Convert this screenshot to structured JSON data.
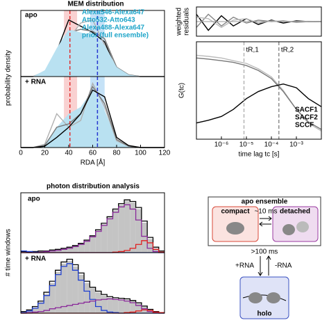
{
  "chart_data": [
    {
      "type": "line",
      "title": "MEM distribution",
      "annotation": "apo",
      "ylabel": "probability density",
      "legend": true,
      "legend_color": "#1ea5c9",
      "x": [
        0,
        10,
        20,
        30,
        40,
        50,
        60,
        70,
        80,
        90,
        100,
        110,
        120
      ],
      "xlim": [
        0,
        120
      ],
      "ylim": [
        0,
        1.05
      ],
      "markers": [
        {
          "x": 41,
          "band": [
            36,
            47
          ],
          "color": "#e03030",
          "band_color": "#f7c6c6"
        },
        {
          "x": 64,
          "band": [
            58,
            70
          ],
          "color": "#2535d0",
          "band_color": "#b7dbf5"
        }
      ],
      "series": [
        {
          "name": "Alexa546-Alexa647",
          "color": "#000000",
          "values": [
            0,
            0,
            0.05,
            0.4,
            0.9,
            0.8,
            0.7,
            0.55,
            0.1,
            0.02,
            0,
            0,
            0
          ]
        },
        {
          "name": "Atto532-Atto643",
          "color": "#777777",
          "values": [
            0,
            0,
            0.05,
            0.3,
            0.7,
            0.75,
            0.72,
            0.6,
            0.15,
            0.03,
            0,
            0,
            0
          ]
        },
        {
          "name": "Alexa488-Alexa647",
          "color": "#b0b0b0",
          "values": [
            0,
            0,
            0.08,
            0.35,
            0.6,
            0.85,
            0.9,
            0.5,
            0.12,
            0.02,
            0,
            0,
            0
          ]
        },
        {
          "name": "prior (full ensemble)",
          "color": "#b9e1f1",
          "fill": true,
          "values": [
            0,
            0,
            0.1,
            0.45,
            0.75,
            0.7,
            0.65,
            0.5,
            0.15,
            0.03,
            0,
            0,
            0
          ]
        }
      ]
    },
    {
      "type": "line",
      "annotation": "+ RNA",
      "xlabel": "RDA [Å]",
      "x": [
        0,
        10,
        20,
        30,
        40,
        50,
        60,
        70,
        80,
        90,
        100,
        110,
        120
      ],
      "xlim": [
        0,
        120
      ],
      "ylim": [
        0,
        1.05
      ],
      "xticks": [
        0,
        20,
        40,
        60,
        80,
        100,
        120
      ],
      "markers": [
        {
          "x": 41,
          "band": [
            36,
            47
          ],
          "color": "#e03030",
          "band_color": "#f7c6c6"
        },
        {
          "x": 64,
          "band": [
            58,
            70
          ],
          "color": "#2535d0",
          "band_color": "#b7dbf5"
        }
      ],
      "series": [
        {
          "color": "#b9e1f1",
          "fill": true,
          "values": [
            0,
            0,
            0.05,
            0.3,
            0.5,
            0.6,
            0.85,
            0.55,
            0.12,
            0.02,
            0,
            0,
            0
          ]
        },
        {
          "color": "#b0b0b0",
          "values": [
            0,
            0,
            0.05,
            0.5,
            0.3,
            0.4,
            0.95,
            0.6,
            0.1,
            0.02,
            0,
            0,
            0
          ]
        },
        {
          "color": "#777777",
          "values": [
            0,
            0,
            0.03,
            0.3,
            0.35,
            0.5,
            0.9,
            0.65,
            0.12,
            0.02,
            0,
            0,
            0
          ]
        },
        {
          "color": "#000000",
          "values": [
            0,
            0,
            0.02,
            0.15,
            0.3,
            0.5,
            0.85,
            0.75,
            0.15,
            0.03,
            0,
            0,
            0
          ]
        }
      ]
    },
    {
      "type": "line",
      "ylabel": [
        "weighted",
        "residuals"
      ],
      "log_x": true,
      "x": [
        1e-07,
        3e-07,
        1e-06,
        3e-06,
        1e-05,
        3e-05,
        0.0001,
        0.0003,
        0.001,
        0.003,
        0.01
      ],
      "xlim": [
        1e-07,
        0.01
      ],
      "ylim": [
        -1,
        1
      ],
      "series": [
        {
          "color": "#000000",
          "values": [
            0.5,
            -0.6,
            0.4,
            -0.3,
            0.2,
            -0.2,
            0.1,
            -0.1,
            0.05,
            0,
            0
          ]
        },
        {
          "color": "#888888",
          "values": [
            -0.4,
            0.5,
            -0.3,
            0.3,
            -0.1,
            0.1,
            0,
            0.05,
            -0.05,
            0,
            0
          ]
        },
        {
          "color": "#bbbbbb",
          "values": [
            0.3,
            0.2,
            -0.4,
            0.1,
            0.2,
            -0.1,
            0.05,
            0,
            0,
            0.02,
            0
          ]
        }
      ]
    },
    {
      "type": "line",
      "ylabel": "G(tc)",
      "xlabel": "time lag tc [s]",
      "log_x": true,
      "legend": true,
      "legend_color": "#000000",
      "x": [
        1e-07,
        3e-07,
        1e-06,
        3e-06,
        1e-05,
        3e-05,
        0.0001,
        0.0003,
        0.001,
        0.003,
        0.01
      ],
      "xlim": [
        1e-07,
        0.01
      ],
      "ylim": [
        0,
        1.8
      ],
      "xticks": [
        {
          "value": 1e-06,
          "label": "10⁻⁶"
        },
        {
          "value": 1e-05,
          "label": "10⁻⁵"
        },
        {
          "value": 0.0001,
          "label": "10⁻⁴"
        },
        {
          "value": 0.001,
          "label": "10⁻³"
        }
      ],
      "markers": [
        {
          "x": 8e-06,
          "label": "tR,1",
          "color": "#999999"
        },
        {
          "x": 0.0002,
          "label": "tR,2",
          "color": "#555555"
        }
      ],
      "series": [
        {
          "name": "SACF1",
          "color": "#bbbbbb",
          "values": [
            1.55,
            1.53,
            1.5,
            1.45,
            1.4,
            1.3,
            1.15,
            0.9,
            0.55,
            0.3,
            0.15
          ]
        },
        {
          "name": "SACF2",
          "color": "#777777",
          "values": [
            1.5,
            1.48,
            1.45,
            1.42,
            1.36,
            1.27,
            1.12,
            0.88,
            0.55,
            0.32,
            0.18
          ]
        },
        {
          "name": "SCCF",
          "color": "#000000",
          "values": [
            0.3,
            0.35,
            0.42,
            0.55,
            0.75,
            0.88,
            0.97,
            1.02,
            0.95,
            0.75,
            0.6
          ]
        }
      ]
    },
    {
      "type": "histogram",
      "title": "photon distribution analysis",
      "annotation": "apo",
      "ylabel": "# time windows",
      "bins": [
        0,
        0.04,
        0.08,
        0.12,
        0.16,
        0.2,
        0.24,
        0.28,
        0.32,
        0.36,
        0.4,
        0.44,
        0.48,
        0.52,
        0.56,
        0.6,
        0.64,
        0.68,
        0.72,
        0.76,
        0.8,
        0.84,
        0.88,
        0.92,
        0.96,
        1
      ],
      "xlim": [
        0,
        1
      ],
      "ylim": [
        0,
        110
      ],
      "color": "#c4c4c4",
      "values": [
        1,
        1,
        1,
        2,
        3,
        4,
        5,
        7,
        9,
        12,
        16,
        22,
        30,
        40,
        52,
        65,
        78,
        88,
        95,
        92,
        80,
        55,
        25,
        8,
        2
      ],
      "series": [
        {
          "color": "#000000",
          "values": [
            2,
            1,
            2,
            3,
            3,
            5,
            6,
            8,
            10,
            13,
            17,
            23,
            31,
            42,
            54,
            66,
            80,
            90,
            97,
            94,
            83,
            58,
            28,
            10,
            3
          ]
        },
        {
          "color": "#8a2a9a",
          "values": [
            0,
            0,
            0,
            1,
            2,
            3,
            4,
            6,
            8,
            11,
            15,
            21,
            29,
            39,
            50,
            62,
            74,
            84,
            88,
            80,
            60,
            30,
            8,
            2,
            0
          ]
        },
        {
          "color": "#2040d0",
          "values": [
            3,
            2,
            1,
            0,
            0,
            0,
            0,
            0,
            0,
            0,
            0,
            0,
            0,
            0,
            0,
            0,
            0,
            0,
            0,
            0,
            0,
            0,
            0,
            0,
            0
          ]
        },
        {
          "color": "#e02020",
          "values": [
            0,
            0,
            0,
            0,
            0,
            0,
            0,
            0,
            0,
            0,
            0,
            0,
            0,
            0,
            0,
            0,
            1,
            2,
            4,
            8,
            15,
            22,
            18,
            6,
            1
          ]
        }
      ]
    },
    {
      "type": "histogram",
      "annotation": "+ RNA",
      "bins": [
        0,
        0.04,
        0.08,
        0.12,
        0.16,
        0.2,
        0.24,
        0.28,
        0.32,
        0.36,
        0.4,
        0.44,
        0.48,
        0.52,
        0.56,
        0.6,
        0.64,
        0.68,
        0.72,
        0.76,
        0.8,
        0.84,
        0.88,
        0.92,
        0.96,
        1
      ],
      "xlim": [
        0,
        1
      ],
      "ylim": [
        0,
        110
      ],
      "color": "#c4c4c4",
      "values": [
        2,
        5,
        10,
        20,
        35,
        55,
        75,
        90,
        95,
        85,
        70,
        55,
        45,
        38,
        32,
        28,
        26,
        25,
        24,
        22,
        18,
        12,
        6,
        3,
        1
      ],
      "series": [
        {
          "color": "#000000",
          "values": [
            3,
            6,
            12,
            22,
            38,
            58,
            78,
            93,
            98,
            88,
            73,
            58,
            47,
            40,
            34,
            30,
            28,
            27,
            26,
            23,
            19,
            13,
            7,
            3,
            1
          ]
        },
        {
          "color": "#2040d0",
          "values": [
            1,
            4,
            9,
            18,
            32,
            50,
            70,
            85,
            90,
            78,
            60,
            40,
            25,
            12,
            5,
            2,
            1,
            0,
            0,
            0,
            0,
            0,
            0,
            0,
            0
          ]
        },
        {
          "color": "#8a2a9a",
          "values": [
            0,
            1,
            2,
            3,
            5,
            8,
            10,
            12,
            14,
            16,
            18,
            20,
            22,
            24,
            25,
            26,
            25,
            24,
            22,
            19,
            14,
            8,
            3,
            1,
            0
          ]
        },
        {
          "color": "#e02020",
          "values": [
            0,
            0,
            0,
            0,
            0,
            0,
            0,
            0,
            0,
            0,
            0,
            0,
            0,
            0,
            0,
            0,
            0,
            0,
            1,
            2,
            4,
            6,
            5,
            2,
            1
          ]
        }
      ]
    }
  ],
  "diagram": {
    "ensemble": "apo ensemble",
    "compact": "compact",
    "detached": "detached",
    "fast": "~10 ms",
    "slow": ">100 ms",
    "bind_rna": "+RNA",
    "unbind_rna": "-RNA",
    "holo": "holo"
  }
}
